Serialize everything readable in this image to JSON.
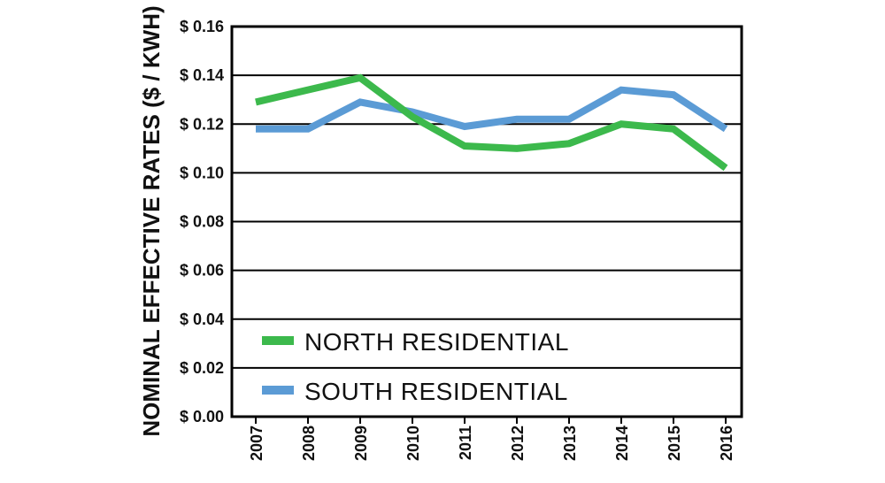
{
  "chart_data": {
    "type": "line",
    "ylabel": "NOMINAL EFFECTIVE RATES ($ / KWH)",
    "xlabel": "",
    "ylim": [
      0,
      0.16
    ],
    "y_ticks": [
      0.0,
      0.02,
      0.04,
      0.06,
      0.08,
      0.1,
      0.12,
      0.14,
      0.16
    ],
    "y_tick_labels": [
      "$ 0.00",
      "$ 0.02",
      "$ 0.04",
      "$ 0.06",
      "$ 0.08",
      "$ 0.10",
      "$ 0.12",
      "$ 0.14",
      "$ 0.16"
    ],
    "categories": [
      "2007",
      "2008",
      "2009",
      "2010",
      "2011",
      "2012",
      "2013",
      "2014",
      "2015",
      "2016"
    ],
    "grid": "horizontal",
    "legend_position": "bottom-left inside",
    "series": [
      {
        "name": "NORTH RESIDENTIAL",
        "color": "#3cb94c",
        "values": [
          0.129,
          0.134,
          0.139,
          0.123,
          0.111,
          0.11,
          0.112,
          0.12,
          0.118,
          0.102
        ]
      },
      {
        "name": "SOUTH RESIDENTIAL",
        "color": "#5b9bd5",
        "values": [
          0.118,
          0.118,
          0.129,
          0.125,
          0.119,
          0.122,
          0.122,
          0.134,
          0.132,
          0.118
        ]
      }
    ]
  }
}
